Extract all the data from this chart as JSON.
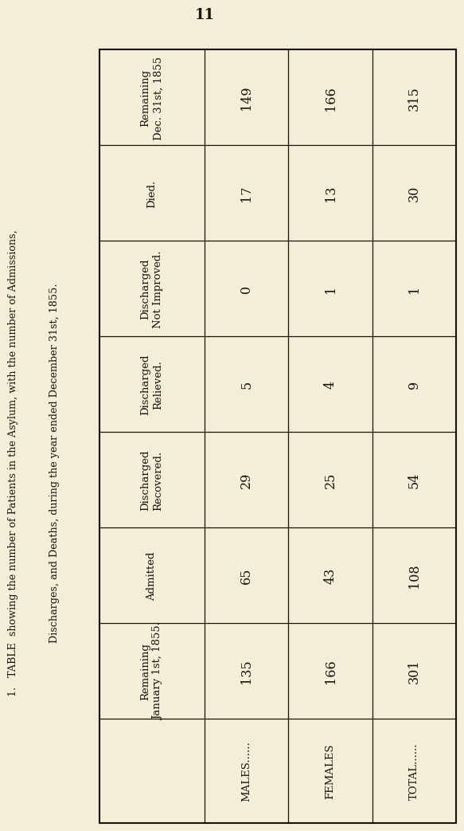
{
  "page_number": "11",
  "title_line1": "1.   TABLE  showing the number of Patients in the Asylum, with the number of Admissions,",
  "title_line2": "Discharges, and Deaths, during the year ended December 31st, 1855.",
  "row_headers": [
    "Remaining\nDec. 31st, 1855",
    "Died.",
    "Discharged\nNot Improved.",
    "Discharged\nRelieved.",
    "Discharged\nRecovered.",
    "Admitted",
    "Remaining\nJanuary 1st, 1855.",
    ""
  ],
  "col_headers": [
    "MALES......",
    "FEMALES",
    "TOTAL......"
  ],
  "data": [
    [
      "149",
      "166",
      "315"
    ],
    [
      "17",
      "13",
      "30"
    ],
    [
      "0",
      "1",
      "1"
    ],
    [
      "5",
      "4",
      "9"
    ],
    [
      "29",
      "25",
      "54"
    ],
    [
      "65",
      "43",
      "108"
    ],
    [
      "135",
      "166",
      "301"
    ],
    [
      "MALES......",
      "FEMALES",
      "TOTAL......"
    ]
  ],
  "bg_color": "#f4edd8",
  "text_color": "#1a1208",
  "font_size_title": 9.2,
  "font_size_header": 9.5,
  "font_size_data": 11.5
}
